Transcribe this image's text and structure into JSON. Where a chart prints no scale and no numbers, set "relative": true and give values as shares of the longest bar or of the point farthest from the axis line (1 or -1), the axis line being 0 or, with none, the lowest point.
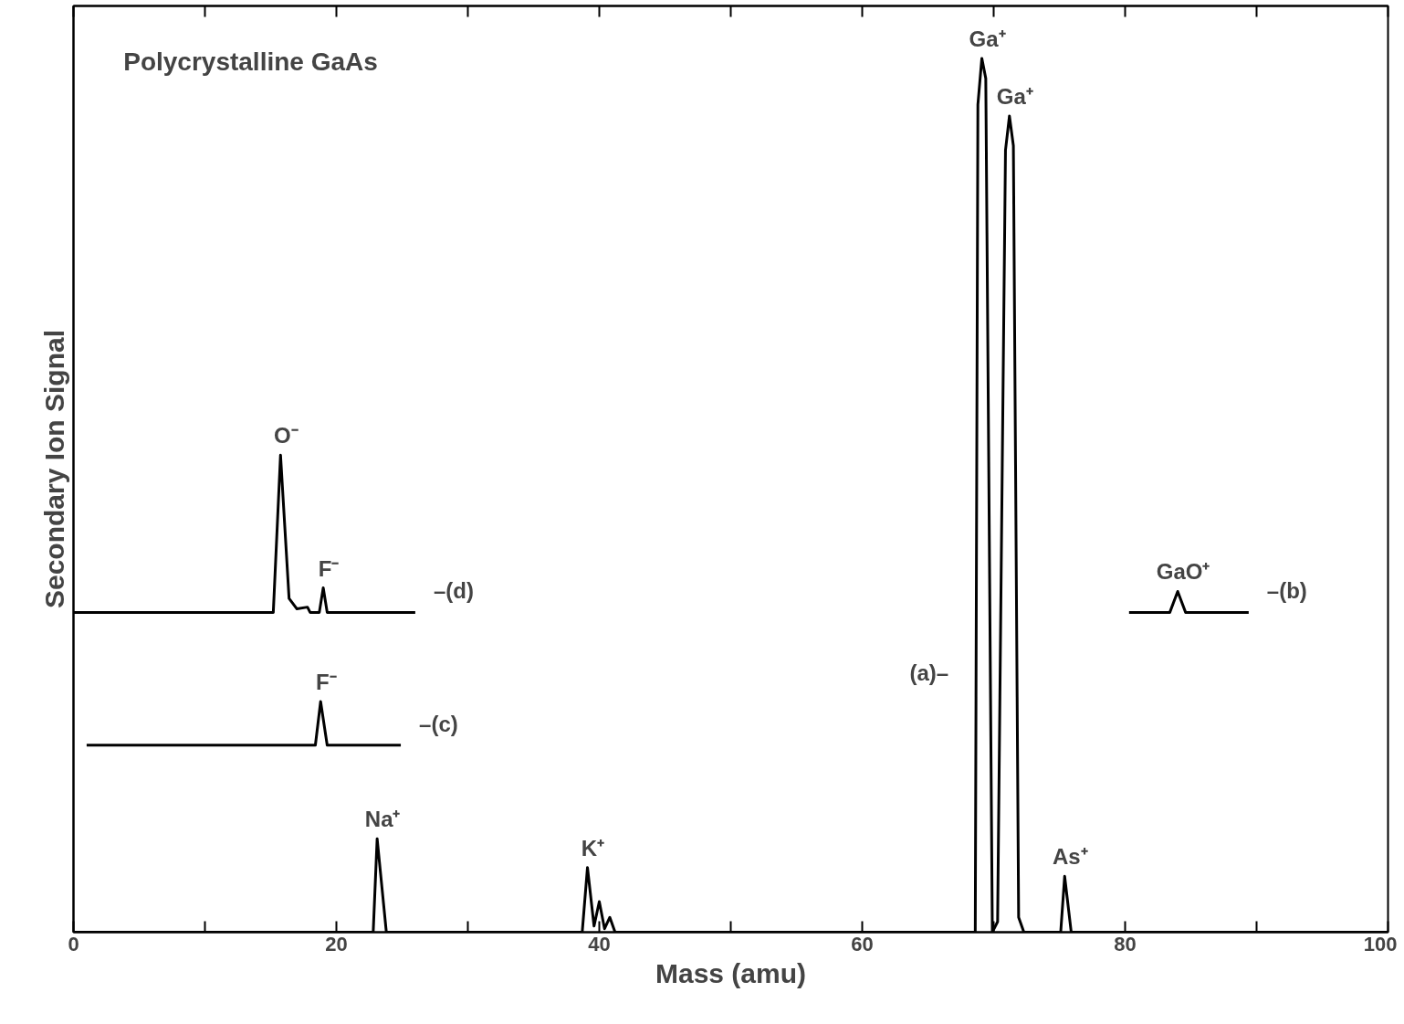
{
  "chart_data": {
    "type": "line",
    "relative": true,
    "xlabel": "Mass (amu)",
    "ylabel": "Secondary Ion Signal",
    "xlim": [
      0,
      100
    ],
    "xticks": [
      0,
      {
        "value": 10,
        "label": null
      },
      20,
      {
        "value": 30,
        "label": null
      },
      40,
      {
        "value": 50,
        "label": null
      },
      60,
      {
        "value": 70,
        "label": null
      },
      80,
      {
        "value": 90,
        "label": null
      },
      100
    ],
    "line_style": "solid",
    "marker": "none",
    "grid": false,
    "annotations": [
      "Polycrystalline GaAs",
      {
        "text": "Ga⁺",
        "x": 69.1,
        "y": 1.0
      },
      {
        "text": "Ga⁺",
        "x": 71.2,
        "y": 0.934
      },
      {
        "text": "Na⁺",
        "x": 23.1,
        "y": 0.107
      },
      {
        "text": "K⁺",
        "x": 39.1,
        "y": 0.074
      },
      {
        "text": "As⁺",
        "x": 75.4,
        "y": 0.064
      },
      {
        "text": "O⁻",
        "x": 15.75,
        "y": 0.546
      },
      {
        "text": "F⁻",
        "x": 19.0,
        "y": 0.394
      },
      {
        "text": "F⁻",
        "x": 18.8,
        "y": 0.264
      },
      {
        "text": "GaO⁺",
        "x": 84.0,
        "y": 0.39
      },
      {
        "text": "(a)–",
        "x": 68.66,
        "y": 0.297
      },
      {
        "text": "–(b)",
        "x": 89.4,
        "y": 0.366
      },
      {
        "text": "–(c)",
        "x": 24.9,
        "y": 0.214
      },
      {
        "text": "–(d)",
        "x": 26.0,
        "y": 0.366
      }
    ],
    "series": [
      {
        "color": "#000000",
        "x": [
          0,
          22.8,
          23.1,
          23.8,
          38.7,
          39.1,
          39.6,
          40.0,
          40.4,
          40.8,
          41.2,
          68.6,
          68.8,
          69.1,
          69.4,
          69.9,
          70.3,
          70.9,
          71.2,
          71.5,
          71.9,
          72.3,
          75.1,
          75.4,
          75.9,
          100
        ],
        "values": [
          0,
          0,
          0.107,
          0,
          0,
          0.074,
          0.007,
          0.035,
          0.004,
          0.017,
          0,
          0,
          0.947,
          1.0,
          0.977,
          0,
          0.012,
          0.895,
          0.934,
          0.9,
          0.017,
          0,
          0,
          0.064,
          0,
          0
        ]
      },
      {
        "color": "#000000",
        "x": [
          80.3,
          83.4,
          84.0,
          84.6,
          89.4
        ],
        "values": [
          0.366,
          0.366,
          0.39,
          0.366,
          0.366
        ]
      },
      {
        "color": "#000000",
        "x": [
          1.0,
          18.4,
          18.8,
          19.3,
          24.9
        ],
        "values": [
          0.214,
          0.214,
          0.264,
          0.214,
          0.214
        ]
      },
      {
        "color": "#000000",
        "x": [
          0,
          15.2,
          15.75,
          16.4,
          17.0,
          17.8,
          18.0,
          18.7,
          19.0,
          19.3,
          26.0
        ],
        "values": [
          0.366,
          0.366,
          0.546,
          0.382,
          0.37,
          0.372,
          0.366,
          0.366,
          0.394,
          0.366,
          0.366
        ]
      }
    ]
  }
}
